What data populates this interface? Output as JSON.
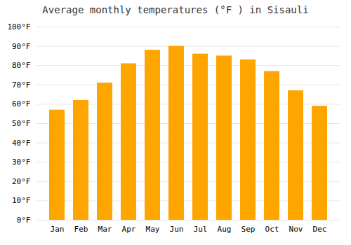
{
  "chart_data": {
    "type": "bar",
    "title": "Average monthly temperatures (°F ) in Sisauli",
    "categories": [
      "Jan",
      "Feb",
      "Mar",
      "Apr",
      "May",
      "Jun",
      "Jul",
      "Aug",
      "Sep",
      "Oct",
      "Nov",
      "Dec"
    ],
    "values": [
      57,
      62,
      71,
      81,
      88,
      90,
      86,
      85,
      83,
      77,
      67,
      59
    ],
    "color": "#FFA500",
    "ylim": [
      0,
      100
    ],
    "yticks": [
      {
        "value": 0,
        "label": "0°F"
      },
      {
        "value": 10,
        "label": "10°F"
      },
      {
        "value": 20,
        "label": "20°F"
      },
      {
        "value": 30,
        "label": "30°F"
      },
      {
        "value": 40,
        "label": "40°F"
      },
      {
        "value": 50,
        "label": "50°F"
      },
      {
        "value": 60,
        "label": "60°F"
      },
      {
        "value": 70,
        "label": "70°F"
      },
      {
        "value": 80,
        "label": "80°F"
      },
      {
        "value": 90,
        "label": "90°F"
      },
      {
        "value": 100,
        "label": "100°F"
      }
    ],
    "grid": true
  }
}
